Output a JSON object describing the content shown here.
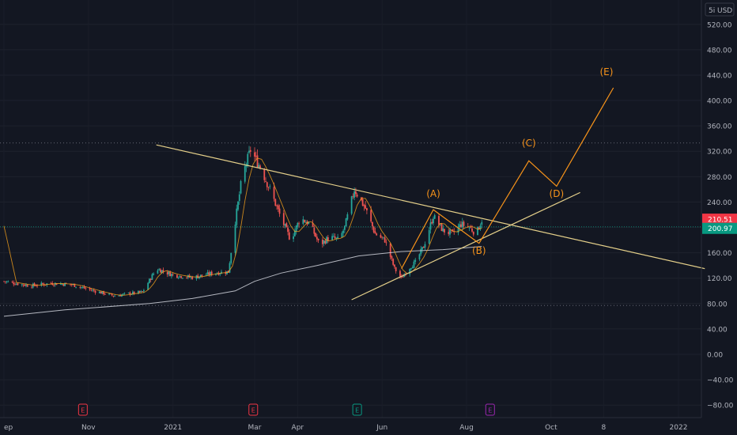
{
  "chart_data": {
    "type": "candlestick",
    "currency": "USD",
    "scale_button": "5i",
    "ylim": [
      -90,
      560
    ],
    "y_ticks": [
      520,
      480,
      440,
      400,
      360,
      320,
      280,
      240,
      200,
      160,
      120,
      80,
      40,
      0,
      -40,
      -80
    ],
    "y_tick_labels": [
      "520.00",
      "480.00",
      "440.00",
      "400.00",
      "360.00",
      "320.00",
      "280.00",
      "240.00",
      "200.00",
      "160.00",
      "120.00",
      "80.00",
      "40.00",
      "0.00",
      "−40.00",
      "−80.00"
    ],
    "x_ticks": [
      {
        "label": "ep",
        "date": "2020-09-01"
      },
      {
        "label": "Nov",
        "date": "2020-11-01"
      },
      {
        "label": "2021",
        "date": "2021-01-01"
      },
      {
        "label": "Mar",
        "date": "2021-03-01"
      },
      {
        "label": "Apr",
        "date": "2021-04-01"
      },
      {
        "label": "Jun",
        "date": "2021-06-01"
      },
      {
        "label": "Aug",
        "date": "2021-08-01"
      },
      {
        "label": "Oct",
        "date": "2021-10-01"
      },
      {
        "label": "8",
        "date": "2021-11-08"
      },
      {
        "label": "2022",
        "date": "2022-01-01"
      }
    ],
    "price_labels": [
      {
        "value": 210.51,
        "text": "210.51",
        "color": "#f23645"
      },
      {
        "value": 200.97,
        "text": "200.97",
        "color": "#089981"
      }
    ],
    "horizontal_levels": [
      333,
      77,
      200.97
    ],
    "close_series": [
      [
        "2020-09-01",
        115
      ],
      [
        "2020-09-20",
        108
      ],
      [
        "2020-10-05",
        112
      ],
      [
        "2020-10-20",
        110
      ],
      [
        "2020-11-05",
        100
      ],
      [
        "2020-11-20",
        92
      ],
      [
        "2020-12-01",
        96
      ],
      [
        "2020-12-10",
        98
      ],
      [
        "2020-12-20",
        135
      ],
      [
        "2021-01-01",
        125
      ],
      [
        "2021-01-15",
        121
      ],
      [
        "2021-01-30",
        128
      ],
      [
        "2021-02-10",
        130
      ],
      [
        "2021-02-15",
        210
      ],
      [
        "2021-02-20",
        280
      ],
      [
        "2021-02-26",
        322
      ],
      [
        "2021-03-05",
        295
      ],
      [
        "2021-03-12",
        260
      ],
      [
        "2021-03-20",
        215
      ],
      [
        "2021-03-27",
        180
      ],
      [
        "2021-04-03",
        215
      ],
      [
        "2021-04-10",
        205
      ],
      [
        "2021-04-17",
        172
      ],
      [
        "2021-04-24",
        185
      ],
      [
        "2021-05-01",
        180
      ],
      [
        "2021-05-05",
        200
      ],
      [
        "2021-05-12",
        260
      ],
      [
        "2021-05-20",
        230
      ],
      [
        "2021-05-27",
        190
      ],
      [
        "2021-06-03",
        180
      ],
      [
        "2021-06-10",
        135
      ],
      [
        "2021-06-15",
        120
      ],
      [
        "2021-06-20",
        135
      ],
      [
        "2021-06-25",
        145
      ],
      [
        "2021-07-01",
        170
      ],
      [
        "2021-07-08",
        218
      ],
      [
        "2021-07-15",
        195
      ],
      [
        "2021-07-22",
        190
      ],
      [
        "2021-07-28",
        205
      ],
      [
        "2021-08-03",
        200
      ],
      [
        "2021-08-08",
        190
      ],
      [
        "2021-08-12",
        212
      ]
    ],
    "moving_average": [
      [
        "2020-09-01",
        60
      ],
      [
        "2020-10-15",
        70
      ],
      [
        "2020-12-15",
        80
      ],
      [
        "2021-01-15",
        88
      ],
      [
        "2021-02-15",
        100
      ],
      [
        "2021-03-01",
        115
      ],
      [
        "2021-03-20",
        128
      ],
      [
        "2021-04-15",
        140
      ],
      [
        "2021-05-15",
        155
      ],
      [
        "2021-06-15",
        162
      ],
      [
        "2021-07-15",
        165
      ],
      [
        "2021-08-12",
        170
      ]
    ],
    "trendlines": [
      {
        "from": [
          "2020-12-20",
          330
        ],
        "to": [
          "2022-01-20",
          135
        ],
        "color": "#e5d08a"
      },
      {
        "from": [
          "2021-05-10",
          86
        ],
        "to": [
          "2021-10-22",
          255
        ],
        "color": "#e5d08a"
      }
    ],
    "wave_path": [
      [
        "2021-06-15",
        135
      ],
      [
        "2021-07-08",
        228
      ],
      [
        "2021-08-10",
        175
      ],
      [
        "2021-09-15",
        305
      ],
      [
        "2021-10-05",
        265
      ],
      [
        "2021-11-15",
        420
      ]
    ],
    "wave_labels": [
      {
        "text": "(A)",
        "date": "2021-07-08",
        "value": 248
      },
      {
        "text": "(B)",
        "date": "2021-08-10",
        "value": 158
      },
      {
        "text": "(C)",
        "date": "2021-09-15",
        "value": 328
      },
      {
        "text": "(D)",
        "date": "2021-10-05",
        "value": 248
      },
      {
        "text": "(E)",
        "date": "2021-11-10",
        "value": 440
      }
    ],
    "event_markers": [
      {
        "text": "E",
        "date": "2020-10-28",
        "color": "#f23645"
      },
      {
        "text": "E",
        "date": "2021-02-28",
        "color": "#f23645"
      },
      {
        "text": "E",
        "date": "2021-05-14",
        "color": "#089981"
      },
      {
        "text": "E",
        "date": "2021-08-18",
        "color": "#9c27b0"
      }
    ]
  }
}
